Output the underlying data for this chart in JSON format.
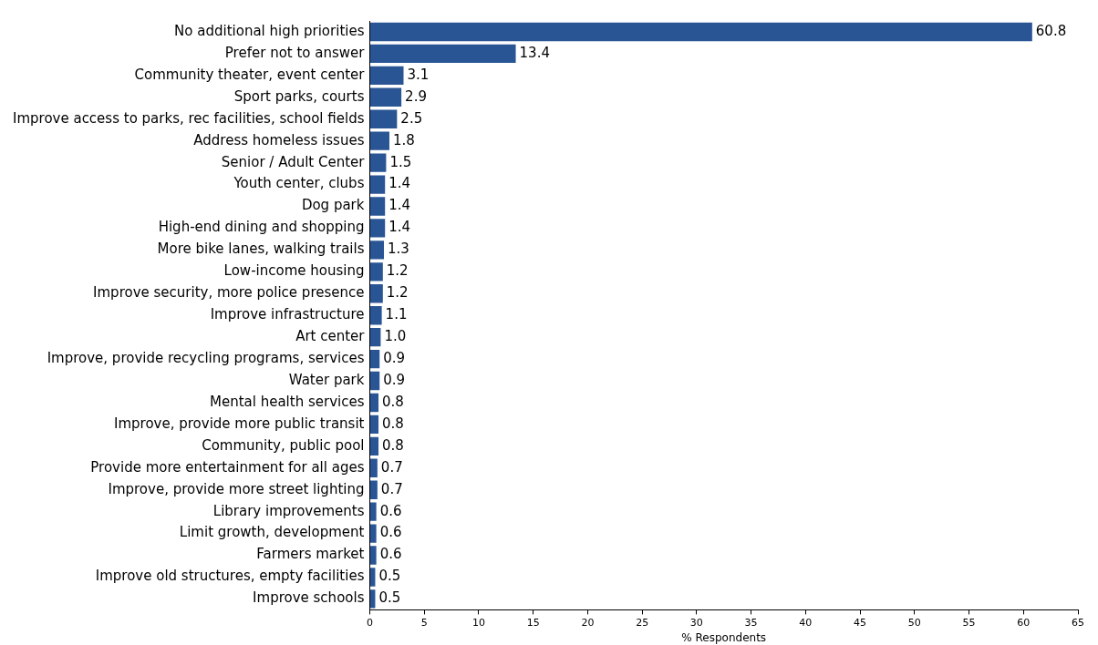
{
  "chart_data": {
    "type": "bar",
    "orientation": "horizontal",
    "xlabel": "% Respondents",
    "categories": [
      "No additional high priorities",
      "Prefer not to answer",
      "Community theater, event center",
      "Sport parks, courts",
      "Improve access to parks, rec facilities, school fields",
      "Address homeless issues",
      "Senior / Adult Center",
      "Youth center, clubs",
      "Dog park",
      "High-end dining and shopping",
      "More bike lanes, walking trails",
      "Low-income housing",
      "Improve security, more police presence",
      "Improve infrastructure",
      "Art center",
      "Improve, provide recycling programs, services",
      "Water park",
      "Mental health services",
      "Improve, provide more public transit",
      "Community, public pool",
      "Provide more entertainment for all ages",
      "Improve, provide more street lighting",
      "Library improvements",
      "Limit growth, development",
      "Farmers market",
      "Improve old structures, empty facilities",
      "Improve schools"
    ],
    "values": [
      60.8,
      13.4,
      3.1,
      2.9,
      2.5,
      1.8,
      1.5,
      1.4,
      1.4,
      1.4,
      1.3,
      1.2,
      1.2,
      1.1,
      1.0,
      0.9,
      0.9,
      0.8,
      0.8,
      0.8,
      0.7,
      0.7,
      0.6,
      0.6,
      0.6,
      0.5,
      0.5
    ],
    "value_labels": [
      "60.8",
      "13.4",
      "3.1",
      "2.9",
      "2.5",
      "1.8",
      "1.5",
      "1.4",
      "1.4",
      "1.4",
      "1.3",
      "1.2",
      "1.2",
      "1.1",
      "1.0",
      "0.9",
      "0.9",
      "0.8",
      "0.8",
      "0.8",
      "0.7",
      "0.7",
      "0.6",
      "0.6",
      "0.6",
      "0.5",
      "0.5"
    ],
    "color": "#2a5594",
    "xlim": [
      0,
      65
    ],
    "xticks": [
      0,
      5,
      10,
      15,
      20,
      25,
      30,
      35,
      40,
      45,
      50,
      55,
      60,
      65
    ],
    "grid": false,
    "legend": false
  }
}
